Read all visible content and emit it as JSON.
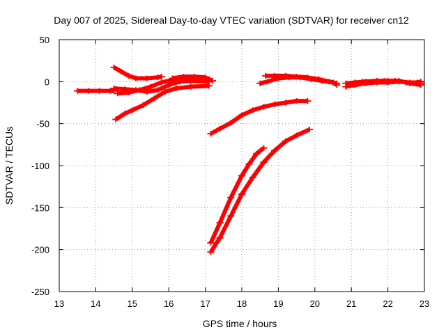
{
  "chart_data": {
    "type": "scatter",
    "title": "Day 007 of 2025, Sidereal Day-to-day VTEC variation (SDTVAR) for receiver cn12",
    "xlabel": "GPS time / hours",
    "ylabel": "SDTVAR / TECUs",
    "xlim": [
      13,
      23
    ],
    "ylim": [
      -250,
      50
    ],
    "xticks": [
      13,
      14,
      15,
      16,
      17,
      18,
      19,
      20,
      21,
      22,
      23
    ],
    "yticks": [
      -250,
      -200,
      -150,
      -100,
      -50,
      0,
      50
    ],
    "grid": true,
    "marker_color": "#ff0000",
    "series": [
      {
        "points": [
          [
            13.5,
            -11
          ],
          [
            13.8,
            -11
          ],
          [
            14.1,
            -11
          ],
          [
            14.4,
            -11
          ],
          [
            14.5,
            -11
          ]
        ]
      },
      {
        "points": [
          [
            14.55,
            -45
          ],
          [
            14.8,
            -38
          ],
          [
            15.0,
            -34
          ],
          [
            15.3,
            -28
          ],
          [
            15.6,
            -20
          ],
          [
            15.9,
            -12
          ],
          [
            16.2,
            -8
          ],
          [
            16.6,
            -6
          ],
          [
            17.1,
            -5
          ]
        ]
      },
      {
        "points": [
          [
            14.5,
            -8
          ],
          [
            14.8,
            -9
          ],
          [
            15.1,
            -10
          ],
          [
            15.4,
            -12
          ],
          [
            15.7,
            -10
          ],
          [
            16.0,
            -4
          ],
          [
            16.3,
            0
          ],
          [
            16.6,
            1
          ],
          [
            17.1,
            0
          ]
        ]
      },
      {
        "points": [
          [
            14.6,
            -14
          ],
          [
            14.9,
            -13
          ],
          [
            15.2,
            -10
          ],
          [
            15.5,
            -6
          ],
          [
            15.8,
            -1
          ],
          [
            16.1,
            2
          ],
          [
            16.4,
            4
          ],
          [
            16.7,
            3
          ],
          [
            17.1,
            3
          ]
        ]
      },
      {
        "points": [
          [
            14.5,
            17
          ],
          [
            14.7,
            12
          ],
          [
            14.9,
            7
          ],
          [
            15.1,
            4
          ],
          [
            15.4,
            4
          ],
          [
            15.7,
            5
          ],
          [
            15.8,
            6
          ]
        ]
      },
      {
        "points": [
          [
            16.1,
            4
          ],
          [
            16.4,
            6
          ],
          [
            16.7,
            6
          ],
          [
            17.0,
            5
          ],
          [
            17.2,
            1
          ]
        ]
      },
      {
        "points": [
          [
            17.15,
            -62
          ],
          [
            17.4,
            -56
          ],
          [
            17.7,
            -49
          ],
          [
            18.0,
            -40
          ],
          [
            18.3,
            -34
          ],
          [
            18.6,
            -30
          ],
          [
            18.9,
            -27
          ],
          [
            19.2,
            -25
          ],
          [
            19.5,
            -23
          ],
          [
            19.8,
            -23
          ]
        ]
      },
      {
        "points": [
          [
            17.15,
            -192
          ],
          [
            17.4,
            -168
          ],
          [
            17.7,
            -138
          ],
          [
            18.0,
            -112
          ],
          [
            18.2,
            -98
          ],
          [
            18.4,
            -86
          ],
          [
            18.6,
            -79
          ]
        ]
      },
      {
        "points": [
          [
            17.15,
            -203
          ],
          [
            17.4,
            -186
          ],
          [
            17.7,
            -160
          ],
          [
            18.0,
            -134
          ],
          [
            18.3,
            -114
          ],
          [
            18.6,
            -96
          ],
          [
            18.9,
            -82
          ],
          [
            19.2,
            -71
          ],
          [
            19.5,
            -64
          ],
          [
            19.85,
            -57
          ]
        ]
      },
      {
        "points": [
          [
            18.5,
            -2
          ],
          [
            18.7,
            0
          ],
          [
            19.0,
            4
          ],
          [
            19.3,
            5
          ],
          [
            19.6,
            5
          ],
          [
            19.9,
            3
          ],
          [
            20.2,
            1
          ],
          [
            20.5,
            -1
          ],
          [
            20.6,
            -4
          ]
        ]
      },
      {
        "points": [
          [
            18.65,
            7
          ],
          [
            18.9,
            7
          ],
          [
            19.2,
            7
          ],
          [
            19.5,
            6
          ],
          [
            19.8,
            5
          ],
          [
            20.1,
            3
          ],
          [
            20.4,
            0
          ],
          [
            20.6,
            -2
          ]
        ]
      },
      {
        "points": [
          [
            20.85,
            -6
          ],
          [
            21.1,
            -4
          ],
          [
            21.4,
            -2
          ],
          [
            21.7,
            -1
          ],
          [
            22.0,
            -1
          ],
          [
            22.3,
            0
          ],
          [
            22.6,
            -1
          ],
          [
            22.9,
            -2
          ]
        ]
      },
      {
        "points": [
          [
            20.85,
            -2
          ],
          [
            21.1,
            -1
          ],
          [
            21.4,
            0
          ],
          [
            21.7,
            1
          ],
          [
            22.0,
            1
          ],
          [
            22.3,
            1
          ],
          [
            22.6,
            -2
          ],
          [
            22.9,
            -4
          ]
        ]
      },
      {
        "points": [
          [
            21.3,
            0
          ],
          [
            21.6,
            0
          ],
          [
            21.9,
            1
          ],
          [
            22.2,
            1
          ],
          [
            22.5,
            -1
          ],
          [
            22.8,
            -1
          ],
          [
            22.9,
            0
          ]
        ]
      }
    ]
  }
}
